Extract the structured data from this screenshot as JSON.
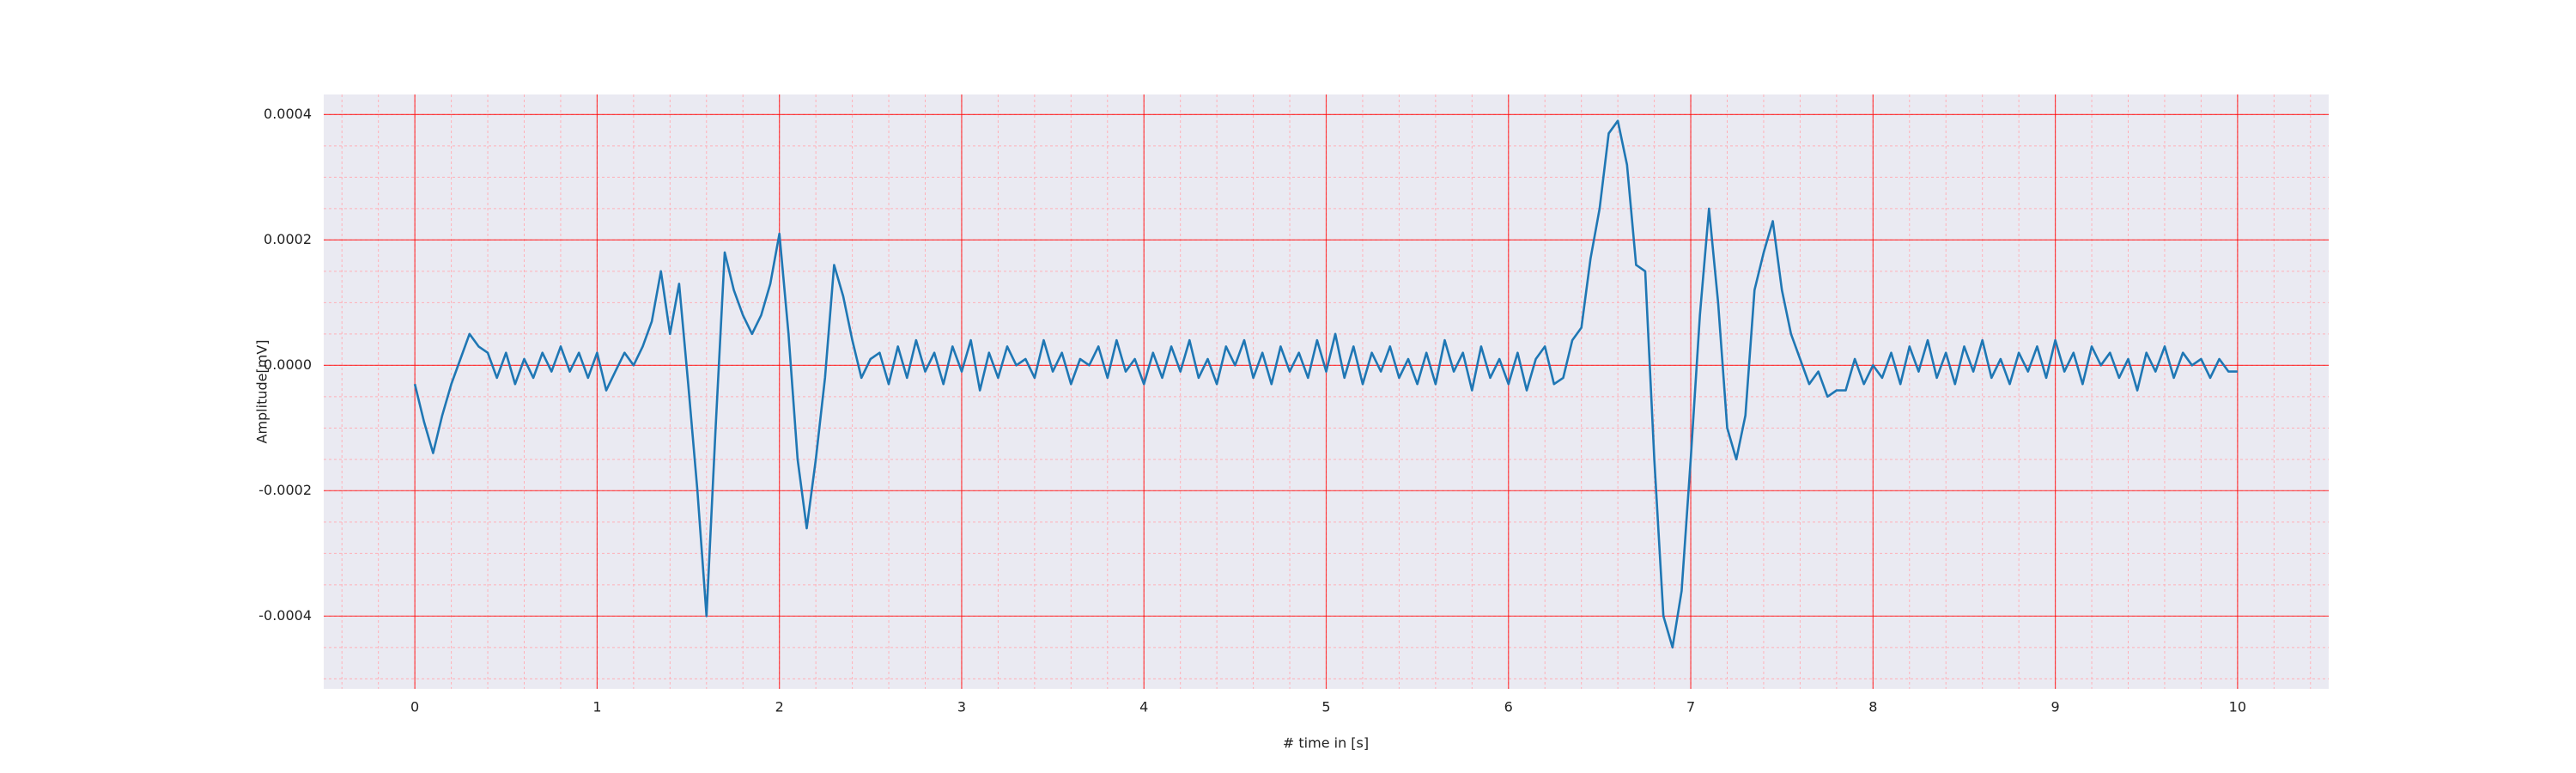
{
  "chart_data": {
    "type": "line",
    "xlabel": "# time in [s]",
    "ylabel": "Amplitude[mV]",
    "x": [
      0,
      0.05,
      0.1,
      0.15,
      0.2,
      0.25,
      0.3,
      0.35,
      0.4,
      0.45,
      0.5,
      0.55,
      0.6,
      0.65,
      0.7,
      0.75,
      0.8,
      0.85,
      0.9,
      0.95,
      1,
      1.05,
      1.1,
      1.15,
      1.2,
      1.25,
      1.3,
      1.35,
      1.4,
      1.45,
      1.5,
      1.55,
      1.6,
      1.65,
      1.7,
      1.75,
      1.8,
      1.85,
      1.9,
      1.95,
      2,
      2.05,
      2.1,
      2.15,
      2.2,
      2.25,
      2.3,
      2.35,
      2.4,
      2.45,
      2.5,
      2.55,
      2.6,
      2.65,
      2.7,
      2.75,
      2.8,
      2.85,
      2.9,
      2.95,
      3,
      3.05,
      3.1,
      3.15,
      3.2,
      3.25,
      3.3,
      3.35,
      3.4,
      3.45,
      3.5,
      3.55,
      3.6,
      3.65,
      3.7,
      3.75,
      3.8,
      3.85,
      3.9,
      3.95,
      4,
      4.05,
      4.1,
      4.15,
      4.2,
      4.25,
      4.3,
      4.35,
      4.4,
      4.45,
      4.5,
      4.55,
      4.6,
      4.65,
      4.7,
      4.75,
      4.8,
      4.85,
      4.9,
      4.95,
      5,
      5.05,
      5.1,
      5.15,
      5.2,
      5.25,
      5.3,
      5.35,
      5.4,
      5.45,
      5.5,
      5.55,
      5.6,
      5.65,
      5.7,
      5.75,
      5.8,
      5.85,
      5.9,
      5.95,
      6,
      6.05,
      6.1,
      6.15,
      6.2,
      6.25,
      6.3,
      6.35,
      6.4,
      6.45,
      6.5,
      6.55,
      6.6,
      6.65,
      6.7,
      6.75,
      6.8,
      6.85,
      6.9,
      6.95,
      7,
      7.05,
      7.1,
      7.15,
      7.2,
      7.25,
      7.3,
      7.35,
      7.4,
      7.45,
      7.5,
      7.55,
      7.6,
      7.65,
      7.7,
      7.75,
      7.8,
      7.85,
      7.9,
      7.95,
      8,
      8.05,
      8.1,
      8.15,
      8.2,
      8.25,
      8.3,
      8.35,
      8.4,
      8.45,
      8.5,
      8.55,
      8.6,
      8.65,
      8.7,
      8.75,
      8.8,
      8.85,
      8.9,
      8.95,
      9,
      9.05,
      9.1,
      9.15,
      9.2,
      9.25,
      9.3,
      9.35,
      9.4,
      9.45,
      9.5,
      9.55,
      9.6,
      9.65,
      9.7,
      9.75,
      9.8,
      9.85,
      9.9,
      9.95,
      10
    ],
    "series": [
      {
        "color": "#1f77b4",
        "values": [
          -3e-05,
          -9e-05,
          -0.00014,
          -8e-05,
          -3e-05,
          1e-05,
          5e-05,
          3e-05,
          2e-05,
          -2e-05,
          2e-05,
          -3e-05,
          1e-05,
          -2e-05,
          2e-05,
          -1e-05,
          3e-05,
          -1e-05,
          2e-05,
          -2e-05,
          2e-05,
          -4e-05,
          -1e-05,
          2e-05,
          0,
          3e-05,
          7e-05,
          0.00015,
          5e-05,
          0.00013,
          -3e-05,
          -0.0002,
          -0.0004,
          -0.0001,
          0.00018,
          0.00012,
          8e-05,
          5e-05,
          8e-05,
          0.00013,
          0.00021,
          5e-05,
          -0.00015,
          -0.00026,
          -0.00015,
          -2e-05,
          0.00016,
          0.00011,
          4e-05,
          -2e-05,
          1e-05,
          2e-05,
          -3e-05,
          3e-05,
          -2e-05,
          4e-05,
          -1e-05,
          2e-05,
          -3e-05,
          3e-05,
          -1e-05,
          4e-05,
          -4e-05,
          2e-05,
          -2e-05,
          3e-05,
          0,
          1e-05,
          -2e-05,
          4e-05,
          -1e-05,
          2e-05,
          -3e-05,
          1e-05,
          0,
          3e-05,
          -2e-05,
          4e-05,
          -1e-05,
          1e-05,
          -3e-05,
          2e-05,
          -2e-05,
          3e-05,
          -1e-05,
          4e-05,
          -2e-05,
          1e-05,
          -3e-05,
          3e-05,
          0,
          4e-05,
          -2e-05,
          2e-05,
          -3e-05,
          3e-05,
          -1e-05,
          2e-05,
          -2e-05,
          4e-05,
          -1e-05,
          5e-05,
          -2e-05,
          3e-05,
          -3e-05,
          2e-05,
          -1e-05,
          3e-05,
          -2e-05,
          1e-05,
          -3e-05,
          2e-05,
          -3e-05,
          4e-05,
          -1e-05,
          2e-05,
          -4e-05,
          3e-05,
          -2e-05,
          1e-05,
          -3e-05,
          2e-05,
          -4e-05,
          1e-05,
          3e-05,
          -3e-05,
          -2e-05,
          4e-05,
          6e-05,
          0.00017,
          0.00025,
          0.00037,
          0.00039,
          0.00032,
          0.00016,
          0.00015,
          -0.00015,
          -0.0004,
          -0.00045,
          -0.00036,
          -0.00015,
          8e-05,
          0.00025,
          0.0001,
          -0.0001,
          -0.00015,
          -8e-05,
          0.00012,
          0.00018,
          0.00023,
          0.00012,
          5e-05,
          1e-05,
          -3e-05,
          -1e-05,
          -5e-05,
          -4e-05,
          -4e-05,
          1e-05,
          -3e-05,
          0,
          -2e-05,
          2e-05,
          -3e-05,
          3e-05,
          -1e-05,
          4e-05,
          -2e-05,
          2e-05,
          -3e-05,
          3e-05,
          -1e-05,
          4e-05,
          -2e-05,
          1e-05,
          -3e-05,
          2e-05,
          -1e-05,
          3e-05,
          -2e-05,
          4e-05,
          -1e-05,
          2e-05,
          -3e-05,
          3e-05,
          0,
          2e-05,
          -2e-05,
          1e-05,
          -4e-05,
          2e-05,
          -1e-05,
          3e-05,
          -2e-05,
          2e-05,
          0,
          1e-05,
          -2e-05,
          1e-05,
          -1e-05,
          -1e-05
        ]
      }
    ],
    "xlim": [
      -0.5,
      10.5
    ],
    "xticks": [
      0,
      1,
      2,
      3,
      4,
      5,
      6,
      7,
      8,
      9,
      10
    ],
    "ylim": [
      -0.000516,
      0.000432
    ],
    "yticks": [
      -0.0004,
      -0.0002,
      {
        "value": 0,
        "label": "0.0000"
      },
      0.0002,
      0.0004
    ],
    "grid": true,
    "grid_color": "#ff0000",
    "minor_grid": true,
    "minor_grid_color": "#ffb0b8",
    "xminor_step": 0.2,
    "yminor_step": 5e-05,
    "background": "#eaeaf2"
  }
}
